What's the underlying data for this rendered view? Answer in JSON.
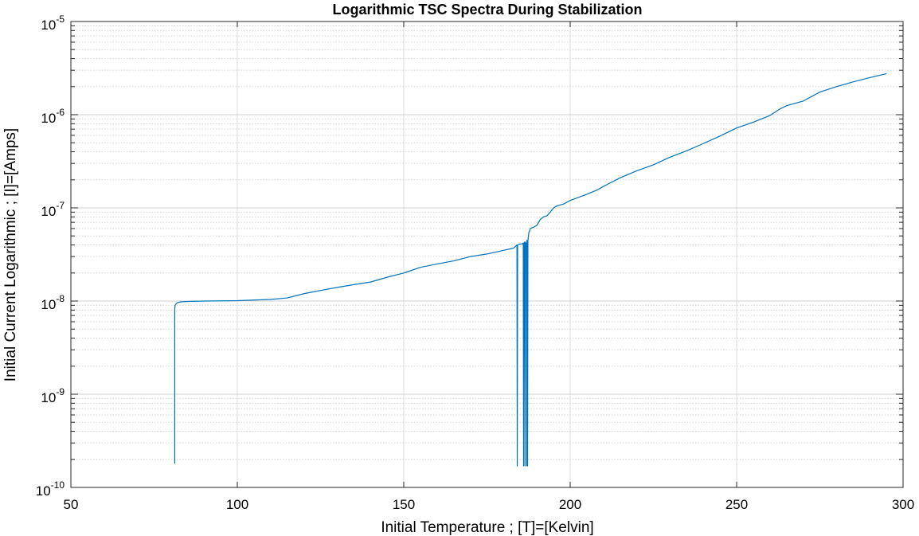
{
  "chart_data": {
    "type": "line",
    "title": "Logarithmic TSC Spectra During Stabilization",
    "xlabel": "Initial Temperature ; [T]=[Kelvin]",
    "ylabel": "Initial Current Logarithmic ; [I]=[Amps]",
    "xlim": [
      50,
      300
    ],
    "ylim": [
      1e-10,
      1e-05
    ],
    "yscale": "log",
    "grid": true,
    "minor_grid": "y",
    "xticks": [
      "50",
      "100",
      "150",
      "200",
      "250",
      "300"
    ],
    "yticks": [
      {
        "base": "10",
        "exp": "-10"
      },
      {
        "base": "10",
        "exp": "-9"
      },
      {
        "base": "10",
        "exp": "-8"
      },
      {
        "base": "10",
        "exp": "-7"
      },
      {
        "base": "10",
        "exp": "-6"
      },
      {
        "base": "10",
        "exp": "-5"
      }
    ],
    "series": [
      {
        "color": "#0072BD",
        "x": [
          81.2,
          81.2,
          81.3,
          81.6,
          82,
          83,
          85,
          90,
          100,
          110,
          115,
          120,
          125,
          130,
          135,
          140,
          145,
          150,
          155,
          160,
          165,
          170,
          175,
          180,
          183,
          184,
          184.1,
          184.2,
          184.4,
          185,
          185.5,
          185.9,
          186,
          186.1,
          186.2,
          186.3,
          186.4,
          186.5,
          186.7,
          186.8,
          186.9,
          187,
          187.1,
          187.2,
          187.3,
          187.6,
          187.8,
          188,
          189,
          190,
          191,
          192,
          193,
          194,
          195,
          196,
          198,
          200,
          205,
          208,
          210,
          215,
          220,
          225,
          230,
          235,
          240,
          245,
          250,
          255,
          260,
          263,
          265,
          270,
          273,
          275,
          280,
          285,
          290,
          295
        ],
        "y": [
          1.8e-10,
          8e-09,
          9e-09,
          9.3e-09,
          9.6e-09,
          9.8e-09,
          9.9e-09,
          1e-08,
          1.01e-08,
          1.04e-08,
          1.08e-08,
          1.2e-08,
          1.3e-08,
          1.4e-08,
          1.5e-08,
          1.6e-08,
          1.8e-08,
          2e-08,
          2.3e-08,
          2.5e-08,
          2.7e-08,
          3e-08,
          3.2e-08,
          3.5e-08,
          3.7e-08,
          4e-08,
          1.7e-10,
          4e-08,
          4.05e-08,
          4.1e-08,
          4.1e-08,
          4.2e-08,
          1.7e-10,
          4.2e-08,
          3.5e-08,
          4.3e-08,
          1.7e-10,
          4.3e-08,
          3.8e-08,
          4.2e-08,
          1.7e-10,
          4.5e-08,
          4.3e-08,
          1.7e-10,
          4.4e-08,
          5.5e-08,
          5.6e-08,
          6e-08,
          6.2e-08,
          6.5e-08,
          7.5e-08,
          8e-08,
          8.2e-08,
          9e-08,
          1e-07,
          1.05e-07,
          1.1e-07,
          1.2e-07,
          1.4e-07,
          1.55e-07,
          1.7e-07,
          2.1e-07,
          2.5e-07,
          2.9e-07,
          3.5e-07,
          4.1e-07,
          4.9e-07,
          5.9e-07,
          7.2e-07,
          8.3e-07,
          9.8e-07,
          1.15e-06,
          1.25e-06,
          1.4e-06,
          1.6e-06,
          1.75e-06,
          2e-06,
          2.25e-06,
          2.5e-06,
          2.75e-06
        ]
      }
    ]
  }
}
